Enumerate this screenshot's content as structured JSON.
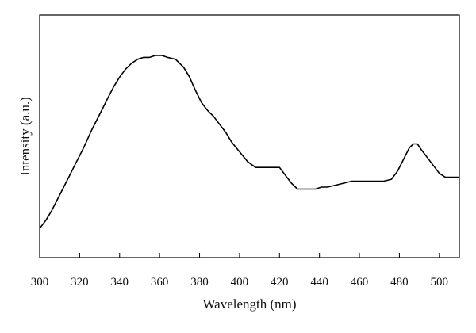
{
  "chart_data": {
    "type": "line",
    "title": "",
    "xlabel": "Wavelength (nm)",
    "ylabel": "Intensity (a.u.)",
    "xlim": [
      300,
      510
    ],
    "ylim": [
      0,
      100
    ],
    "x_ticks": [
      300,
      320,
      340,
      360,
      380,
      400,
      420,
      440,
      460,
      480,
      500
    ],
    "y_ticks": [],
    "grid": false,
    "legend": "none",
    "colors": {
      "line": "#000000",
      "axis": "#000000",
      "background": "#ffffff"
    },
    "series": [
      {
        "x": [
          300,
          303,
          306,
          310,
          314,
          318,
          322,
          326,
          330,
          334,
          337,
          340,
          343,
          346,
          349,
          352,
          355,
          358,
          361,
          364,
          368,
          372,
          375,
          378,
          381,
          384,
          387,
          390,
          393,
          396,
          400,
          404,
          408,
          412,
          416,
          420,
          423,
          426,
          429,
          432,
          435,
          438,
          441,
          444,
          448,
          452,
          456,
          460,
          464,
          468,
          472,
          476,
          479,
          482,
          485,
          487,
          489,
          491,
          494,
          497,
          500,
          503,
          506,
          510
        ],
        "y": [
          6,
          10,
          15,
          23,
          31,
          39,
          47,
          56,
          64,
          72,
          78,
          83,
          87,
          90,
          92,
          93,
          93,
          94,
          94,
          93,
          92,
          88,
          83,
          76,
          70,
          66,
          63,
          59,
          55,
          50,
          45,
          40,
          37,
          37,
          37,
          37,
          33,
          29,
          26,
          26,
          26,
          26,
          27,
          27,
          28,
          29,
          30,
          30,
          30,
          30,
          30,
          31,
          35,
          41,
          47,
          49,
          49,
          46,
          42,
          38,
          34,
          32,
          32,
          32
        ]
      }
    ]
  }
}
